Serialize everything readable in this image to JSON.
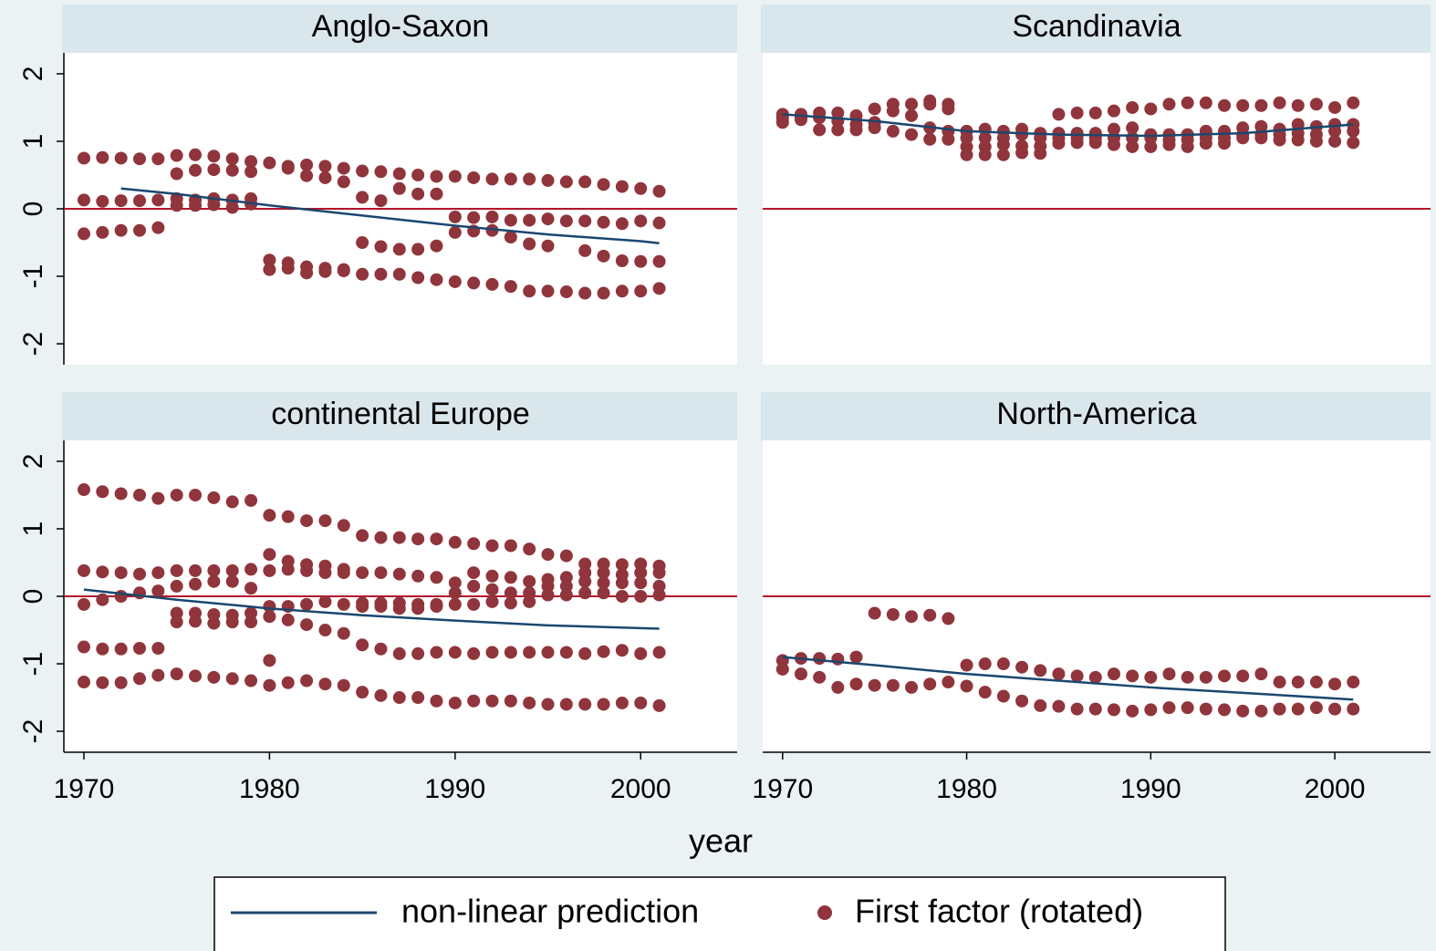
{
  "chart_data": {
    "type": "scatter",
    "xlabel": "year",
    "xlim": [
      1968.92,
      2005.2
    ],
    "xticks": [
      1970,
      1980,
      1990,
      2000
    ],
    "ylim": [
      -2.31,
      2.31
    ],
    "yticks": [
      -2,
      -1,
      0,
      1,
      2
    ],
    "reference_line": 0,
    "reference_color": "#b5122b",
    "series": [
      {
        "name": "non-linear prediction",
        "color": "#1a476f"
      },
      {
        "name": "First factor (rotated)",
        "color": "#90353b"
      }
    ],
    "panels": [
      {
        "title": "Anglo-Saxon",
        "line_x": [
          1972,
          1975,
          1980,
          1985,
          1990,
          1995,
          2000,
          2001
        ],
        "line_values": [
          0.3,
          0.22,
          0.05,
          -0.1,
          -0.25,
          -0.38,
          -0.48,
          -0.51
        ],
        "points_x": [
          1970,
          1971,
          1972,
          1973,
          1974,
          1975,
          1976,
          1977,
          1978,
          1979,
          1980,
          1981,
          1982,
          1983,
          1984,
          1985,
          1986,
          1987,
          1988,
          1989,
          1990,
          1991,
          1992,
          1993,
          1994,
          1995,
          1996,
          1997,
          1998,
          1999,
          2000,
          2001
        ],
        "points_values": [
          [
            0.75,
            0.13,
            -0.37
          ],
          [
            0.76,
            0.11,
            -0.35
          ],
          [
            0.75,
            0.12,
            -0.32
          ],
          [
            0.74,
            0.12,
            -0.32
          ],
          [
            0.74,
            0.13,
            -0.28
          ],
          [
            0.79,
            0.52,
            0.15,
            0.05
          ],
          [
            0.8,
            0.57,
            0.13,
            0.05
          ],
          [
            0.78,
            0.58,
            0.15,
            0.06
          ],
          [
            0.74,
            0.57,
            0.13,
            0.02
          ],
          [
            0.7,
            0.55,
            0.15,
            0.07
          ],
          [
            0.68,
            -0.76,
            -0.9
          ],
          [
            0.63,
            0.6,
            -0.8,
            -0.88
          ],
          [
            0.65,
            0.49,
            -0.86,
            -0.95
          ],
          [
            0.63,
            0.46,
            -0.88,
            -0.93
          ],
          [
            0.6,
            0.4,
            -0.9,
            -0.92
          ],
          [
            0.56,
            0.17,
            -0.5,
            -0.97
          ],
          [
            0.55,
            0.12,
            -0.56,
            -0.97
          ],
          [
            0.52,
            0.3,
            -0.6,
            -0.97
          ],
          [
            0.5,
            0.22,
            -0.6,
            -1.02
          ],
          [
            0.48,
            0.22,
            -0.55,
            -1.05
          ],
          [
            0.48,
            -0.12,
            -0.35,
            -1.08
          ],
          [
            0.46,
            -0.13,
            -0.33,
            -1.1
          ],
          [
            0.44,
            -0.12,
            -0.32,
            -1.12
          ],
          [
            0.44,
            -0.17,
            -0.42,
            -1.15
          ],
          [
            0.44,
            -0.17,
            -0.52,
            -1.22
          ],
          [
            0.42,
            -0.15,
            -0.55,
            -1.22
          ],
          [
            0.4,
            -0.18,
            -1.23
          ],
          [
            0.4,
            -0.18,
            -0.62,
            -1.25
          ],
          [
            0.36,
            -0.2,
            -0.7,
            -1.25
          ],
          [
            0.33,
            -0.22,
            -0.77,
            -1.22
          ],
          [
            0.3,
            -0.18,
            -0.78,
            -1.22
          ],
          [
            0.26,
            -0.21,
            -0.78,
            -1.18
          ]
        ]
      },
      {
        "title": "Scandinavia",
        "line_x": [
          1970,
          1975,
          1980,
          1985,
          1990,
          1995,
          2001
        ],
        "line_values": [
          1.4,
          1.3,
          1.15,
          1.1,
          1.08,
          1.12,
          1.25
        ],
        "points_x": [
          1970,
          1971,
          1972,
          1973,
          1974,
          1975,
          1976,
          1977,
          1978,
          1979,
          1980,
          1981,
          1982,
          1983,
          1984,
          1985,
          1986,
          1987,
          1988,
          1989,
          1990,
          1991,
          1992,
          1993,
          1994,
          1995,
          1996,
          1997,
          1998,
          1999,
          2000,
          2001
        ],
        "points_values": [
          [
            1.4,
            1.35,
            1.28
          ],
          [
            1.4,
            1.35,
            1.32
          ],
          [
            1.42,
            1.35,
            1.17
          ],
          [
            1.42,
            1.3,
            1.17
          ],
          [
            1.38,
            1.25,
            1.17
          ],
          [
            1.48,
            1.28,
            1.2
          ],
          [
            1.55,
            1.45,
            1.15
          ],
          [
            1.55,
            1.38,
            1.1
          ],
          [
            1.6,
            1.55,
            1.2,
            1.03
          ],
          [
            1.55,
            1.48,
            1.15,
            1.03
          ],
          [
            1.15,
            1.05,
            0.92,
            0.8
          ],
          [
            1.18,
            1.05,
            0.92,
            0.8
          ],
          [
            1.15,
            1.05,
            0.95,
            0.8
          ],
          [
            1.18,
            1.1,
            0.93,
            0.83
          ],
          [
            1.12,
            1.05,
            0.93,
            0.82
          ],
          [
            1.4,
            1.12,
            1.05,
            0.97
          ],
          [
            1.42,
            1.12,
            1.05,
            0.98
          ],
          [
            1.42,
            1.12,
            1.05,
            0.98
          ],
          [
            1.45,
            1.18,
            1.05,
            0.95
          ],
          [
            1.5,
            1.2,
            1.05,
            0.92
          ],
          [
            1.48,
            1.1,
            1.05,
            0.92
          ],
          [
            1.55,
            1.1,
            1.02,
            0.95
          ],
          [
            1.57,
            1.1,
            1.02,
            0.92
          ],
          [
            1.57,
            1.15,
            1.05,
            0.97
          ],
          [
            1.53,
            1.15,
            1.05,
            0.97
          ],
          [
            1.53,
            1.2,
            1.1,
            1.05
          ],
          [
            1.53,
            1.22,
            1.1,
            1.05
          ],
          [
            1.57,
            1.18,
            1.1,
            1.02
          ],
          [
            1.53,
            1.25,
            1.12,
            1.02
          ],
          [
            1.55,
            1.22,
            1.1,
            1.0
          ],
          [
            1.5,
            1.25,
            1.15,
            1.0
          ],
          [
            1.57,
            1.25,
            1.15,
            0.98
          ]
        ]
      },
      {
        "title": "continental Europe",
        "line_x": [
          1970,
          1975,
          1980,
          1985,
          1990,
          1995,
          2001
        ],
        "line_values": [
          0.1,
          -0.05,
          -0.18,
          -0.28,
          -0.36,
          -0.43,
          -0.48
        ],
        "points_x": [
          1970,
          1971,
          1972,
          1973,
          1974,
          1975,
          1976,
          1977,
          1978,
          1979,
          1980,
          1981,
          1982,
          1983,
          1984,
          1985,
          1986,
          1987,
          1988,
          1989,
          1990,
          1991,
          1992,
          1993,
          1994,
          1995,
          1996,
          1997,
          1998,
          1999,
          2000,
          2001
        ],
        "points_values": [
          [
            1.58,
            0.38,
            -0.12,
            -0.75,
            -1.27
          ],
          [
            1.55,
            0.36,
            -0.05,
            -0.78,
            -1.28
          ],
          [
            1.52,
            0.35,
            0.0,
            -0.78,
            -1.28
          ],
          [
            1.5,
            0.33,
            0.05,
            -0.77,
            -1.22
          ],
          [
            1.45,
            0.35,
            0.08,
            -0.77,
            -1.17
          ],
          [
            1.5,
            0.38,
            0.15,
            -0.25,
            -0.38,
            -1.15
          ],
          [
            1.5,
            0.38,
            0.18,
            -0.25,
            -0.37,
            -1.18
          ],
          [
            1.46,
            0.38,
            0.22,
            -0.27,
            -0.4,
            -1.2
          ],
          [
            1.4,
            0.38,
            0.22,
            -0.28,
            -0.38,
            -1.22
          ],
          [
            1.42,
            0.4,
            0.12,
            -0.25,
            -0.38,
            -1.25
          ],
          [
            1.2,
            0.62,
            0.38,
            -0.15,
            -0.3,
            -0.95,
            -1.32
          ],
          [
            1.18,
            0.52,
            0.4,
            -0.15,
            -0.35,
            -1.28
          ],
          [
            1.12,
            0.47,
            0.38,
            -0.12,
            -0.42,
            -1.25
          ],
          [
            1.12,
            0.45,
            0.35,
            -0.08,
            -0.5,
            -1.3
          ],
          [
            1.05,
            0.4,
            0.35,
            -0.12,
            -0.55,
            -1.32
          ],
          [
            0.9,
            0.35,
            -0.1,
            -0.15,
            -0.72,
            -1.42
          ],
          [
            0.87,
            0.35,
            -0.1,
            -0.15,
            -0.78,
            -1.47
          ],
          [
            0.87,
            0.33,
            -0.1,
            -0.18,
            -0.85,
            -1.5
          ],
          [
            0.85,
            0.3,
            -0.12,
            -0.18,
            -0.85,
            -1.5
          ],
          [
            0.85,
            0.28,
            -0.12,
            -0.15,
            -0.83,
            -1.55
          ],
          [
            0.8,
            0.2,
            0.05,
            -0.12,
            -0.83,
            -1.58
          ],
          [
            0.78,
            0.35,
            0.15,
            -0.12,
            -0.85,
            -1.55
          ],
          [
            0.75,
            0.3,
            0.1,
            -0.08,
            -0.83,
            -1.55
          ],
          [
            0.75,
            0.28,
            0.05,
            -0.1,
            -0.83,
            -1.55
          ],
          [
            0.7,
            0.22,
            0.05,
            -0.08,
            -0.83,
            -1.58
          ],
          [
            0.62,
            0.25,
            0.15,
            0.02,
            -0.83,
            -1.6
          ],
          [
            0.6,
            0.28,
            0.15,
            0.02,
            -0.83,
            -1.6
          ],
          [
            0.48,
            0.35,
            0.22,
            0.05,
            -0.85,
            -1.6
          ],
          [
            0.48,
            0.35,
            0.2,
            0.05,
            -0.82,
            -1.6
          ],
          [
            0.47,
            0.32,
            0.2,
            0.0,
            -0.8,
            -1.58
          ],
          [
            0.48,
            0.35,
            0.2,
            0.0,
            -0.85,
            -1.58
          ],
          [
            0.45,
            0.35,
            0.15,
            0.02,
            -0.83,
            -1.62
          ]
        ]
      },
      {
        "title": "North-America",
        "line_x": [
          1970,
          1975,
          1980,
          1985,
          1990,
          1995,
          2001
        ],
        "line_values": [
          -0.9,
          -1.02,
          -1.15,
          -1.25,
          -1.35,
          -1.43,
          -1.53
        ],
        "points_x": [
          1970,
          1971,
          1972,
          1973,
          1974,
          1975,
          1976,
          1977,
          1978,
          1979,
          1980,
          1981,
          1982,
          1983,
          1984,
          1985,
          1986,
          1987,
          1988,
          1989,
          1990,
          1991,
          1992,
          1993,
          1994,
          1995,
          1996,
          1997,
          1998,
          1999,
          2000,
          2001
        ],
        "points_values": [
          [
            -0.95,
            -1.08
          ],
          [
            -0.92,
            -1.15
          ],
          [
            -0.92,
            -1.2
          ],
          [
            -0.93,
            -1.35
          ],
          [
            -0.9,
            -1.3
          ],
          [
            -0.25,
            -1.32
          ],
          [
            -0.27,
            -1.32
          ],
          [
            -0.3,
            -1.35
          ],
          [
            -0.28,
            -1.3
          ],
          [
            -0.33,
            -1.27
          ],
          [
            -1.02,
            -1.33
          ],
          [
            -1.0,
            -1.42
          ],
          [
            -1.0,
            -1.48
          ],
          [
            -1.05,
            -1.55
          ],
          [
            -1.1,
            -1.62
          ],
          [
            -1.15,
            -1.63
          ],
          [
            -1.18,
            -1.67
          ],
          [
            -1.2,
            -1.67
          ],
          [
            -1.15,
            -1.68
          ],
          [
            -1.18,
            -1.7
          ],
          [
            -1.2,
            -1.68
          ],
          [
            -1.15,
            -1.65
          ],
          [
            -1.2,
            -1.65
          ],
          [
            -1.2,
            -1.67
          ],
          [
            -1.18,
            -1.68
          ],
          [
            -1.18,
            -1.7
          ],
          [
            -1.15,
            -1.7
          ],
          [
            -1.27,
            -1.67
          ],
          [
            -1.27,
            -1.67
          ],
          [
            -1.27,
            -1.65
          ],
          [
            -1.3,
            -1.67
          ],
          [
            -1.27,
            -1.67
          ]
        ]
      }
    ]
  }
}
